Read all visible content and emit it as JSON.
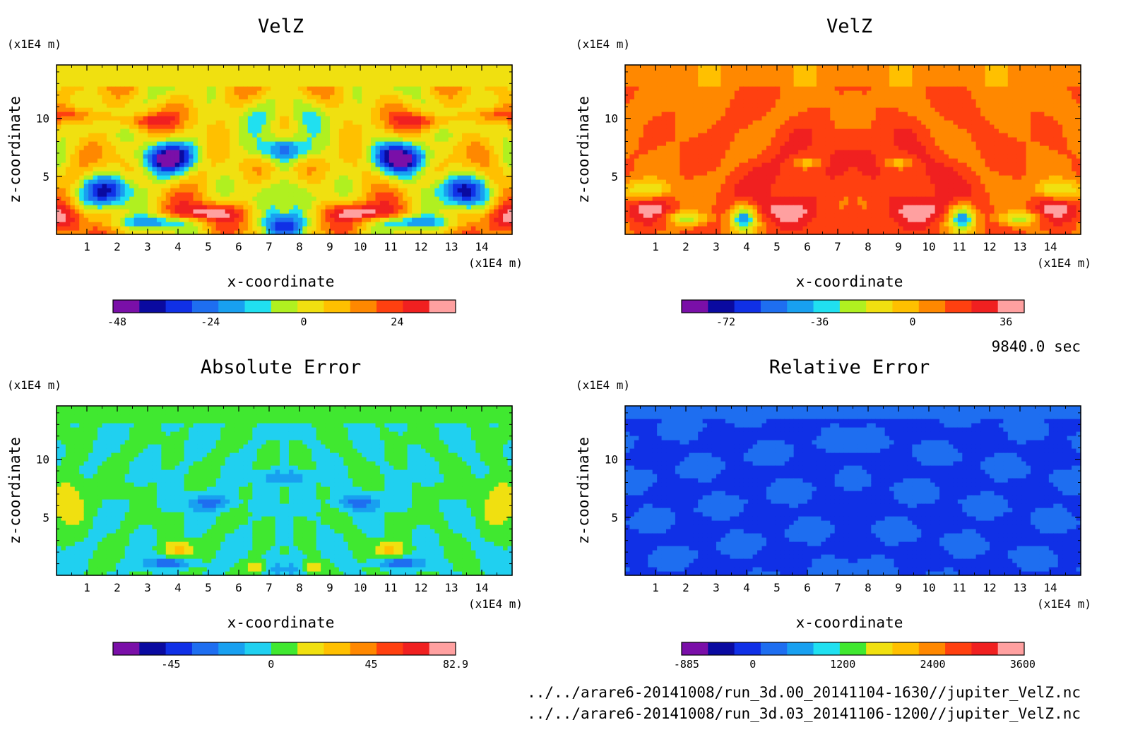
{
  "time_label": "9840.0 sec",
  "file_paths": [
    "../../arare6-20141008/run_3d.00_20141104-1630//jupiter_VelZ.nc",
    "../../arare6-20141008/run_3d.03_20141106-1200//jupiter_VelZ.nc"
  ],
  "colors": {
    "palette": [
      "#7a0fa8",
      "#0a0aa0",
      "#1030e6",
      "#1e6ef0",
      "#18a0f0",
      "#20e0f0",
      "#40e830",
      "#b0f020",
      "#f0e010",
      "#ffc000",
      "#ff8800",
      "#ff4010",
      "#f02020",
      "#ff4040",
      "#ffa0a0"
    ]
  },
  "chart_data": [
    {
      "type": "heatmap",
      "title": "VelZ",
      "xlabel": "x-coordinate",
      "ylabel": "z-coordinate",
      "xunit": "(x1E4 m)",
      "yunit": "(x1E4 m)",
      "xlim": [
        0,
        15
      ],
      "ylim": [
        0,
        14.6
      ],
      "xticks": [
        1,
        2,
        3,
        4,
        5,
        6,
        7,
        8,
        9,
        10,
        11,
        12,
        13,
        14
      ],
      "yticks": [
        5,
        10
      ],
      "colorbar_ticks": [
        {
          "v": -48,
          "label": "-48"
        },
        {
          "v": -24,
          "label": "-24"
        },
        {
          "v": 0,
          "label": "0"
        },
        {
          "v": 24,
          "label": "24"
        }
      ],
      "colorbar_range": [
        -49,
        39
      ],
      "colorbar_colors": [
        "#7a0fa8",
        "#0a0aa0",
        "#1030e6",
        "#1e6ef0",
        "#18a0f0",
        "#20e0f0",
        "#b0f020",
        "#f0e010",
        "#ffc000",
        "#ff8800",
        "#ff4010",
        "#f02020",
        "#ffa0a0"
      ],
      "field": "velz_a"
    },
    {
      "type": "heatmap",
      "title": "VelZ",
      "xlabel": "x-coordinate",
      "ylabel": "z-coordinate",
      "xunit": "(x1E4 m)",
      "yunit": "(x1E4 m)",
      "xlim": [
        0,
        15
      ],
      "ylim": [
        0,
        14.6
      ],
      "xticks": [
        1,
        2,
        3,
        4,
        5,
        6,
        7,
        8,
        9,
        10,
        11,
        12,
        13,
        14
      ],
      "yticks": [
        5,
        10
      ],
      "colorbar_ticks": [
        {
          "v": -72,
          "label": "-72"
        },
        {
          "v": -36,
          "label": "-36"
        },
        {
          "v": 0,
          "label": 0
        },
        {
          "v": 36,
          "label": "36"
        }
      ],
      "colorbar_range": [
        -89,
        43
      ],
      "colorbar_colors": [
        "#7a0fa8",
        "#0a0aa0",
        "#1030e6",
        "#1e6ef0",
        "#18a0f0",
        "#20e0f0",
        "#b0f020",
        "#f0e010",
        "#ffc000",
        "#ff8800",
        "#ff4010",
        "#f02020",
        "#ffa0a0"
      ],
      "field": "velz_b"
    },
    {
      "type": "heatmap",
      "title": "Absolute Error",
      "xlabel": "x-coordinate",
      "ylabel": "z-coordinate",
      "xunit": "(x1E4 m)",
      "yunit": "(x1E4 m)",
      "xlim": [
        0,
        15
      ],
      "ylim": [
        0,
        14.6
      ],
      "xticks": [
        1,
        2,
        3,
        4,
        5,
        6,
        7,
        8,
        9,
        10,
        11,
        12,
        13,
        14
      ],
      "yticks": [
        5,
        10
      ],
      "colorbar_ticks": [
        {
          "v": -45,
          "label": "-45"
        },
        {
          "v": 0,
          "label": "0"
        },
        {
          "v": 45,
          "label": "45"
        },
        {
          "v": 82.9,
          "label": "82.9"
        }
      ],
      "colorbar_range": [
        -71,
        82.9
      ],
      "colorbar_colors": [
        "#7a0fa8",
        "#0a0aa0",
        "#1030e6",
        "#1e6ef0",
        "#18a0f0",
        "#20d0f0",
        "#40e830",
        "#f0e010",
        "#ffc000",
        "#ff8800",
        "#ff4010",
        "#f02020",
        "#ffa0a0"
      ],
      "field": "abs_err"
    },
    {
      "type": "heatmap",
      "title": "Relative Error",
      "xlabel": "x-coordinate",
      "ylabel": "z-coordinate",
      "xunit": "(x1E4 m)",
      "yunit": "(x1E4 m)",
      "xlim": [
        0,
        15
      ],
      "ylim": [
        0,
        14.6
      ],
      "xticks": [
        1,
        2,
        3,
        4,
        5,
        6,
        7,
        8,
        9,
        10,
        11,
        12,
        13,
        14
      ],
      "yticks": [
        5,
        10
      ],
      "colorbar_ticks": [
        {
          "v": -885,
          "label": "-885"
        },
        {
          "v": 0,
          "label": "0"
        },
        {
          "v": 1200,
          "label": "1200"
        },
        {
          "v": 2400,
          "label": "2400"
        },
        {
          "v": 3600,
          "label": "3600"
        }
      ],
      "colorbar_range": [
        -950,
        3620
      ],
      "colorbar_colors": [
        "#7a0fa8",
        "#0a0aa0",
        "#1030e6",
        "#1e6ef0",
        "#18a0f0",
        "#20e0f0",
        "#40e830",
        "#f0e010",
        "#ffc000",
        "#ff8800",
        "#ff4010",
        "#f02020",
        "#ffa0a0"
      ],
      "field": "rel_err"
    }
  ]
}
